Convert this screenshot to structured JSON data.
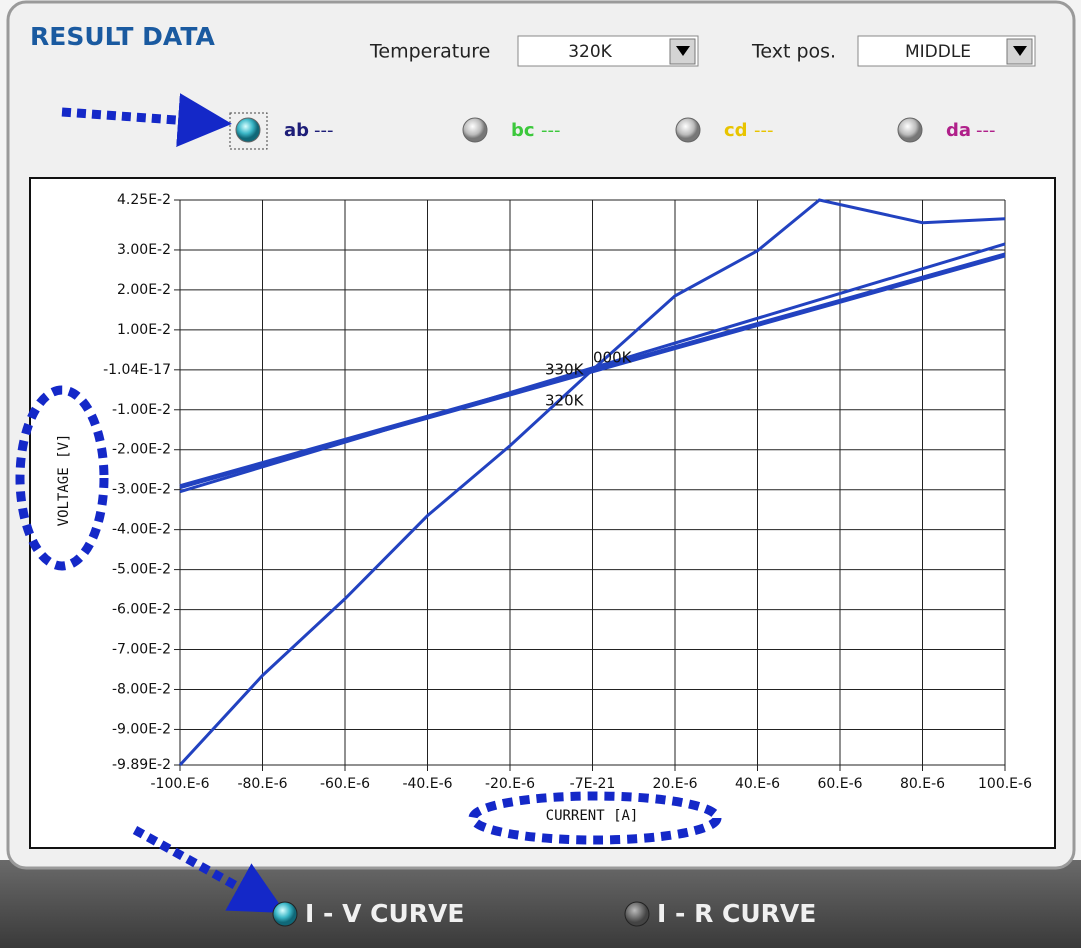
{
  "header": {
    "title": "RESULT DATA",
    "temperature": {
      "label": "Temperature",
      "value": "320K"
    },
    "text_pos": {
      "label": "Text pos.",
      "value": "MIDDLE"
    }
  },
  "radios": [
    {
      "label": "ab",
      "line": "---",
      "color": "#1e1e78",
      "selected": true
    },
    {
      "label": "bc",
      "line": "---",
      "color": "#3cc83c",
      "selected": false
    },
    {
      "label": "cd",
      "line": "---",
      "color": "#e8c400",
      "selected": false
    },
    {
      "label": "da",
      "line": "---",
      "color": "#b0208a",
      "selected": false
    }
  ],
  "chart_data": {
    "type": "line",
    "xlabel": "CURRENT [A]",
    "ylabel": "VOLTAGE [V]",
    "xlim": [
      -0.0001,
      0.0001
    ],
    "ylim": [
      -0.0989,
      0.0425
    ],
    "grid": true,
    "xticks": [
      {
        "value": -0.0001,
        "label": "-100.E-6"
      },
      {
        "value": -8e-05,
        "label": "-80.E-6"
      },
      {
        "value": -6e-05,
        "label": "-60.E-6"
      },
      {
        "value": -4e-05,
        "label": "-40.E-6"
      },
      {
        "value": -2e-05,
        "label": "-20.E-6"
      },
      {
        "value": -7e-21,
        "label": "-7E-21"
      },
      {
        "value": 2e-05,
        "label": "20.E-6"
      },
      {
        "value": 4e-05,
        "label": "40.E-6"
      },
      {
        "value": 6e-05,
        "label": "60.E-6"
      },
      {
        "value": 8e-05,
        "label": "80.E-6"
      },
      {
        "value": 0.0001,
        "label": "100.E-6"
      }
    ],
    "yticks": [
      {
        "value": 0.0425,
        "label": "4.25E-2"
      },
      {
        "value": 0.03,
        "label": "3.00E-2"
      },
      {
        "value": 0.02,
        "label": "2.00E-2"
      },
      {
        "value": 0.01,
        "label": "1.00E-2"
      },
      {
        "value": -1.04e-17,
        "label": "-1.04E-17"
      },
      {
        "value": -0.01,
        "label": "-1.00E-2"
      },
      {
        "value": -0.02,
        "label": "-2.00E-2"
      },
      {
        "value": -0.03,
        "label": "-3.00E-2"
      },
      {
        "value": -0.04,
        "label": "-4.00E-2"
      },
      {
        "value": -0.05,
        "label": "-5.00E-2"
      },
      {
        "value": -0.06,
        "label": "-6.00E-2"
      },
      {
        "value": -0.07,
        "label": "-7.00E-2"
      },
      {
        "value": -0.08,
        "label": "-8.00E-2"
      },
      {
        "value": -0.09,
        "label": "-9.00E-2"
      },
      {
        "value": -0.0989,
        "label": "-9.89E-2"
      }
    ],
    "series": [
      {
        "color": "#2242c0",
        "x": [
          -0.0001,
          -8e-05,
          -6e-05,
          -4e-05,
          -2e-05,
          0,
          2e-05,
          4e-05,
          5.5e-05,
          8e-05,
          0.0001
        ],
        "values": [
          -0.0989,
          -0.0765,
          -0.0573,
          -0.0365,
          -0.019,
          0,
          0.0185,
          0.0298,
          0.0425,
          0.0368,
          0.0378
        ]
      },
      {
        "color": "#2242c0",
        "x": [
          -0.0001,
          0.0001
        ],
        "values": [
          -0.0305,
          0.0315
        ]
      },
      {
        "color": "#2242c0",
        "x": [
          -0.0001,
          0.0001
        ],
        "values": [
          -0.029,
          0.029
        ]
      },
      {
        "color": "#2242c0",
        "x": [
          -0.0001,
          0.0001
        ],
        "values": [
          -0.0295,
          0.0285
        ]
      }
    ],
    "annotations": [
      "330K",
      "000K",
      "320K"
    ]
  },
  "tabs": [
    {
      "label": "I - V CURVE",
      "selected": true
    },
    {
      "label": "I - R CURVE",
      "selected": false
    }
  ]
}
